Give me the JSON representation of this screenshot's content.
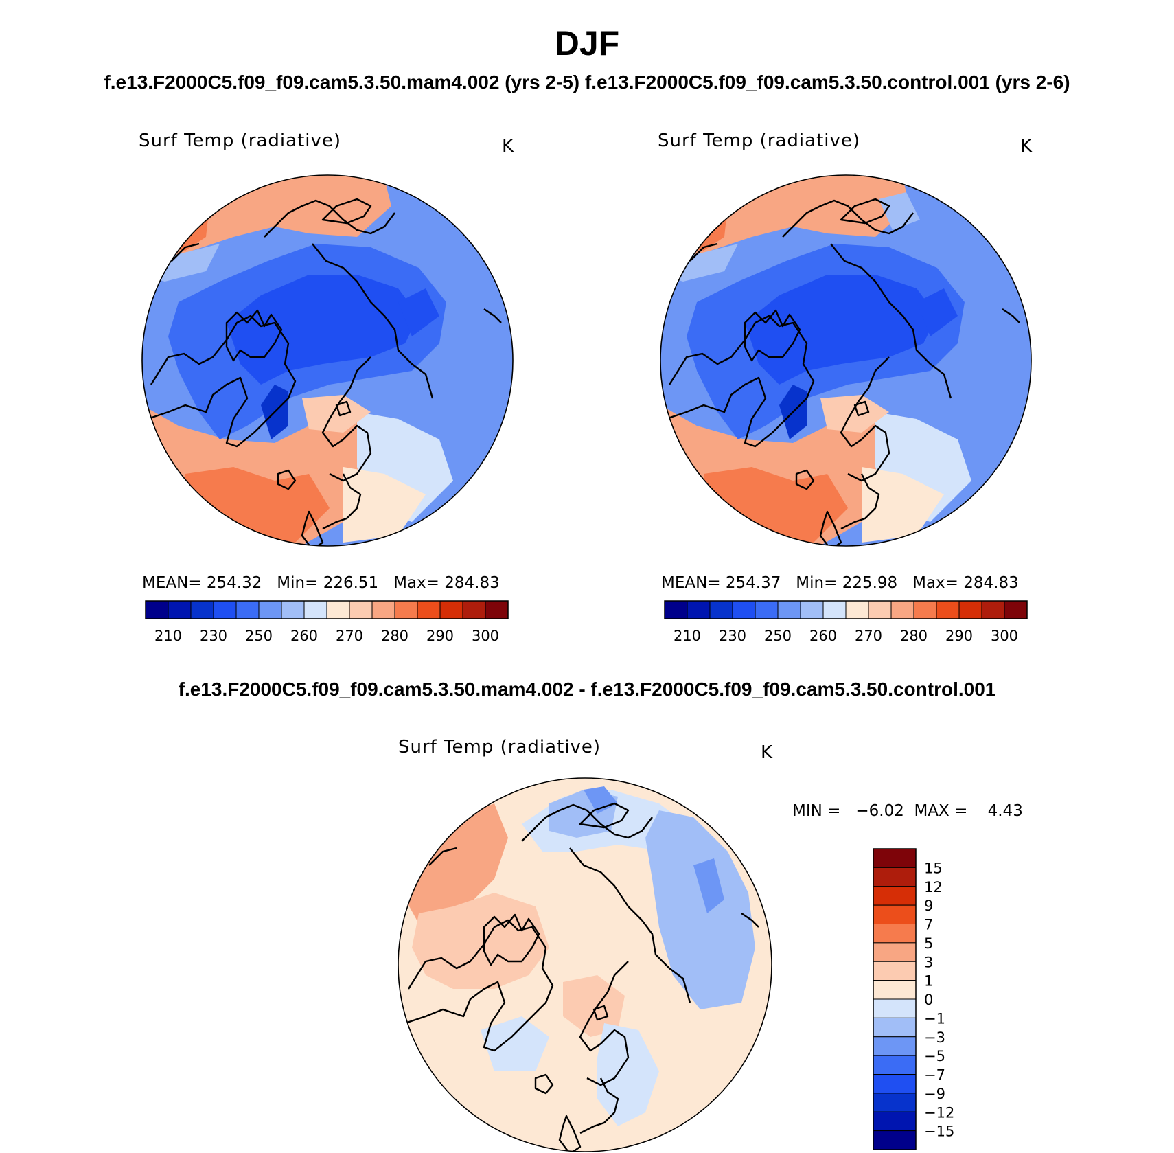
{
  "figure": {
    "title": "DJF",
    "subtitle_top": "f.e13.F2000C5.f09_f09.cam5.3.50.mam4.002 (yrs 2-5) f.e13.F2000C5.f09_f09.cam5.3.50.control.001 (yrs 2-6)",
    "subtitle_diff": "f.e13.F2000C5.f09_f09.cam5.3.50.mam4.002 - f.e13.F2000C5.f09_f09.cam5.3.50.control.001"
  },
  "panels": {
    "mam4": {
      "variable": "Surf Temp (radiative)",
      "units": "K",
      "stats": "MEAN= 254.32   Min= 226.51   Max= 284.83"
    },
    "control": {
      "variable": "Surf Temp (radiative)",
      "units": "K",
      "stats": "MEAN= 254.37   Min= 225.98   Max= 284.83"
    },
    "diff": {
      "variable": "Surf Temp (radiative)",
      "units": "K",
      "stats": "MIN =   −6.02  MAX =    4.43"
    }
  },
  "colorbars": {
    "absolute": {
      "colors": [
        "#00008b",
        "#0015b0",
        "#0733cc",
        "#1f4ff2",
        "#3b6cf5",
        "#6d96f5",
        "#a1bef7",
        "#d4e4fb",
        "#fde8d4",
        "#fccbb1",
        "#f8a683",
        "#f67b4d",
        "#ec4e1b",
        "#d62e06",
        "#ae1d0c",
        "#7e0409"
      ],
      "ticks": [
        "210",
        "230",
        "250",
        "260",
        "270",
        "280",
        "290",
        "300"
      ]
    },
    "difference": {
      "colors": [
        "#00008b",
        "#0015b0",
        "#0733cc",
        "#1f4ff2",
        "#3b6cf5",
        "#6d96f5",
        "#a1bef7",
        "#d4e4fb",
        "#fde8d4",
        "#fccbb1",
        "#f8a683",
        "#f67b4d",
        "#ec4e1b",
        "#d62e06",
        "#ae1d0c",
        "#7e0409"
      ],
      "ticks": [
        "15",
        "12",
        "9",
        "7",
        "5",
        "3",
        "1",
        "0",
        "−1",
        "−3",
        "−5",
        "−7",
        "−9",
        "−12",
        "−15"
      ]
    }
  }
}
